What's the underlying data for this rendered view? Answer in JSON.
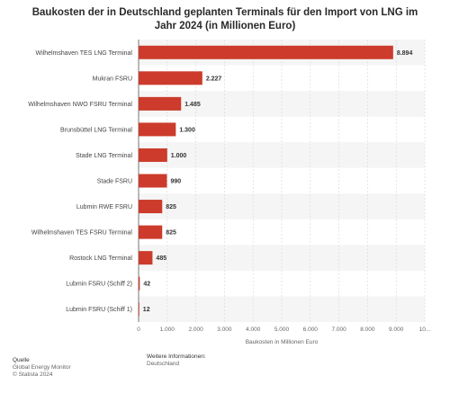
{
  "chart_data": {
    "type": "bar",
    "orientation": "horizontal",
    "title": "Baukosten der in Deutschland geplanten Terminals für den Import von LNG im Jahr 2024 (in Millionen Euro)",
    "categories": [
      "Wilhelmshaven TES LNG Terminal",
      "Mukran FSRU",
      "Wilhelmshaven NWO FSRU Terminal",
      "Brunsbüttel LNG Terminal",
      "Stade LNG Terminal",
      "Stade FSRU",
      "Lubmin RWE FSRU",
      "Wilhelmshaven TES FSRU Terminal",
      "Rostock LNG Terminal",
      "Lubmin FSRU (Schiff 2)",
      "Lubmin FSRU (Schiff 1)"
    ],
    "values": [
      8894,
      2227,
      1485,
      1300,
      1000,
      990,
      825,
      825,
      485,
      42,
      12
    ],
    "value_labels": [
      "8.894",
      "2.227",
      "1.485",
      "1.300",
      "1.000",
      "990",
      "825",
      "825",
      "485",
      "42",
      "12"
    ],
    "xlabel": "Baukosten in Millionen Euro",
    "xlim": [
      0,
      10000
    ],
    "xticks": [
      0,
      1000,
      2000,
      3000,
      4000,
      5000,
      6000,
      7000,
      8000,
      9000,
      10000
    ],
    "xtick_labels": [
      "0",
      "1.000",
      "2.000",
      "3.000",
      "4.000",
      "5.000",
      "6.000",
      "7.000",
      "8.000",
      "9.000",
      "10..."
    ],
    "bar_color": "#cc3b2b",
    "grid": true
  },
  "footer": {
    "source_heading": "Quelle",
    "source_lines": [
      "Global Energy Monitor",
      "© Statista 2024"
    ],
    "info_heading": "Weitere Informationen:",
    "info_lines": [
      "Deutschland"
    ]
  }
}
